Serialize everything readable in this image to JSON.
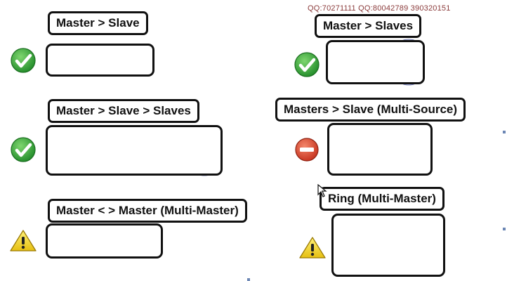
{
  "watermark": "QQ:70271111 QQ:80042789 390320151",
  "status_colors": {
    "ok": "#2fa82f",
    "blocked": "#d9462c",
    "warning": "#f2d21a"
  },
  "db_color": "#9aa6e0",
  "topologies": {
    "master_slave": {
      "title": "Master > Slave",
      "status": "ok",
      "status_icon": "check-icon"
    },
    "master_slave_slaves": {
      "title": "Master > Slave > Slaves",
      "status": "ok",
      "status_icon": "check-icon"
    },
    "master_master": {
      "title": "Master < > Master (Multi-Master)",
      "status": "warning",
      "status_icon": "warning-icon"
    },
    "master_slaves": {
      "title": "Master > Slaves",
      "status": "ok",
      "status_icon": "check-icon"
    },
    "multi_source": {
      "title": "Masters > Slave (Multi-Source)",
      "status": "blocked",
      "status_icon": "no-entry-icon"
    },
    "ring": {
      "title": "Ring (Multi-Master)",
      "status": "warning",
      "status_icon": "warning-icon"
    }
  }
}
